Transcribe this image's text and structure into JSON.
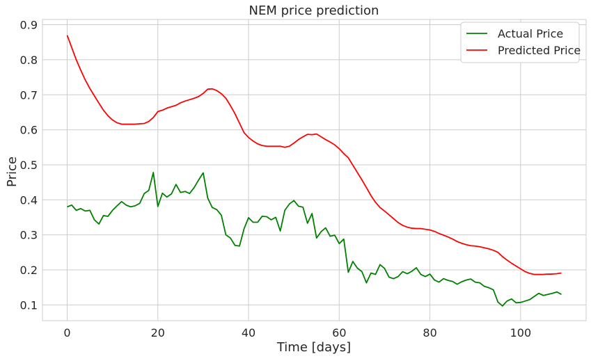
{
  "chart_data": {
    "type": "line",
    "title": "NEM price prediction",
    "xlabel": "Time [days]",
    "ylabel": "Price",
    "xlim": [
      -5.45,
      114.45
    ],
    "ylim": [
      0.055,
      0.915
    ],
    "xticks": [
      0,
      20,
      40,
      60,
      80,
      100
    ],
    "yticks": [
      0.1,
      0.2,
      0.3,
      0.4,
      0.5,
      0.6,
      0.7,
      0.8,
      0.9
    ],
    "grid": true,
    "legend_position": "top-right",
    "series": [
      {
        "name": "Actual Price",
        "color": "#008000",
        "values": [
          0.38,
          0.385,
          0.37,
          0.375,
          0.368,
          0.37,
          0.343,
          0.331,
          0.355,
          0.353,
          0.37,
          0.383,
          0.395,
          0.385,
          0.38,
          0.383,
          0.39,
          0.418,
          0.427,
          0.478,
          0.381,
          0.419,
          0.408,
          0.417,
          0.444,
          0.421,
          0.424,
          0.418,
          0.435,
          0.457,
          0.477,
          0.405,
          0.378,
          0.372,
          0.356,
          0.3,
          0.291,
          0.27,
          0.268,
          0.317,
          0.349,
          0.336,
          0.336,
          0.353,
          0.352,
          0.343,
          0.35,
          0.311,
          0.37,
          0.388,
          0.398,
          0.382,
          0.379,
          0.333,
          0.361,
          0.291,
          0.309,
          0.32,
          0.296,
          0.299,
          0.275,
          0.288,
          0.193,
          0.224,
          0.205,
          0.195,
          0.163,
          0.191,
          0.187,
          0.215,
          0.204,
          0.179,
          0.175,
          0.181,
          0.195,
          0.189,
          0.196,
          0.206,
          0.187,
          0.181,
          0.188,
          0.171,
          0.165,
          0.175,
          0.17,
          0.167,
          0.159,
          0.166,
          0.171,
          0.174,
          0.165,
          0.163,
          0.153,
          0.149,
          0.143,
          0.108,
          0.097,
          0.111,
          0.117,
          0.106,
          0.107,
          0.111,
          0.115,
          0.124,
          0.133,
          0.127,
          0.13,
          0.133,
          0.137,
          0.13
        ]
      },
      {
        "name": "Predicted Price",
        "color": "#ff0000",
        "values": [
          0.87,
          0.835,
          0.8,
          0.77,
          0.742,
          0.718,
          0.697,
          0.676,
          0.656,
          0.64,
          0.628,
          0.62,
          0.616,
          0.616,
          0.616,
          0.616,
          0.617,
          0.618,
          0.624,
          0.635,
          0.652,
          0.656,
          0.662,
          0.666,
          0.67,
          0.677,
          0.682,
          0.686,
          0.69,
          0.695,
          0.704,
          0.716,
          0.717,
          0.712,
          0.703,
          0.69,
          0.669,
          0.646,
          0.619,
          0.592,
          0.578,
          0.568,
          0.56,
          0.555,
          0.553,
          0.553,
          0.553,
          0.553,
          0.55,
          0.553,
          0.562,
          0.572,
          0.58,
          0.587,
          0.586,
          0.588,
          0.58,
          0.572,
          0.565,
          0.557,
          0.546,
          0.532,
          0.52,
          0.499,
          0.478,
          0.457,
          0.435,
          0.412,
          0.393,
          0.378,
          0.368,
          0.357,
          0.346,
          0.335,
          0.327,
          0.322,
          0.319,
          0.318,
          0.318,
          0.316,
          0.314,
          0.31,
          0.304,
          0.299,
          0.294,
          0.288,
          0.281,
          0.276,
          0.272,
          0.269,
          0.268,
          0.266,
          0.263,
          0.26,
          0.256,
          0.25,
          0.238,
          0.228,
          0.219,
          0.211,
          0.203,
          0.195,
          0.19,
          0.187,
          0.187,
          0.187,
          0.188,
          0.188,
          0.189,
          0.191
        ]
      }
    ]
  }
}
